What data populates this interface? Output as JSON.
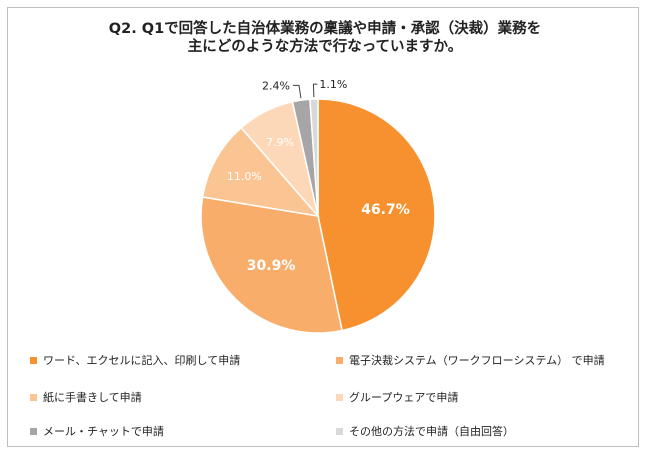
{
  "title_lines": [
    "Q2. Q1で回答した自治体業務の稟議や申請・承認（決裁）業務を",
    "主にどのような方法で行なっていますか。"
  ],
  "chart_data": {
    "type": "pie",
    "title": "Q2. Q1で回答した自治体業務の稟議や申請・承認（決裁）業務を主にどのような方法で行なっていますか。",
    "slices": [
      {
        "label": "ワード、エクセルに記入、印刷して申請",
        "value": 46.7,
        "value_label": "46.7%",
        "color": "#f7912f"
      },
      {
        "label": "電子決裁システム（ワークフローシステム） で申請",
        "value": 30.9,
        "value_label": "30.9%",
        "color": "#f9ad6a"
      },
      {
        "label": "紙に手書きして申請",
        "value": 11.0,
        "value_label": "11.0%",
        "color": "#fbc493"
      },
      {
        "label": "グループウェアで申請",
        "value": 7.9,
        "value_label": "7.9%",
        "color": "#fdd8b8"
      },
      {
        "label": "メール・チャットで申請",
        "value": 2.4,
        "value_label": "2.4%",
        "color": "#a6a6a6"
      },
      {
        "label": "その他の方法で申請（自由回答）",
        "value": 1.1,
        "value_label": "1.1%",
        "color": "#d9d9d9"
      }
    ],
    "legend_position": "bottom"
  }
}
